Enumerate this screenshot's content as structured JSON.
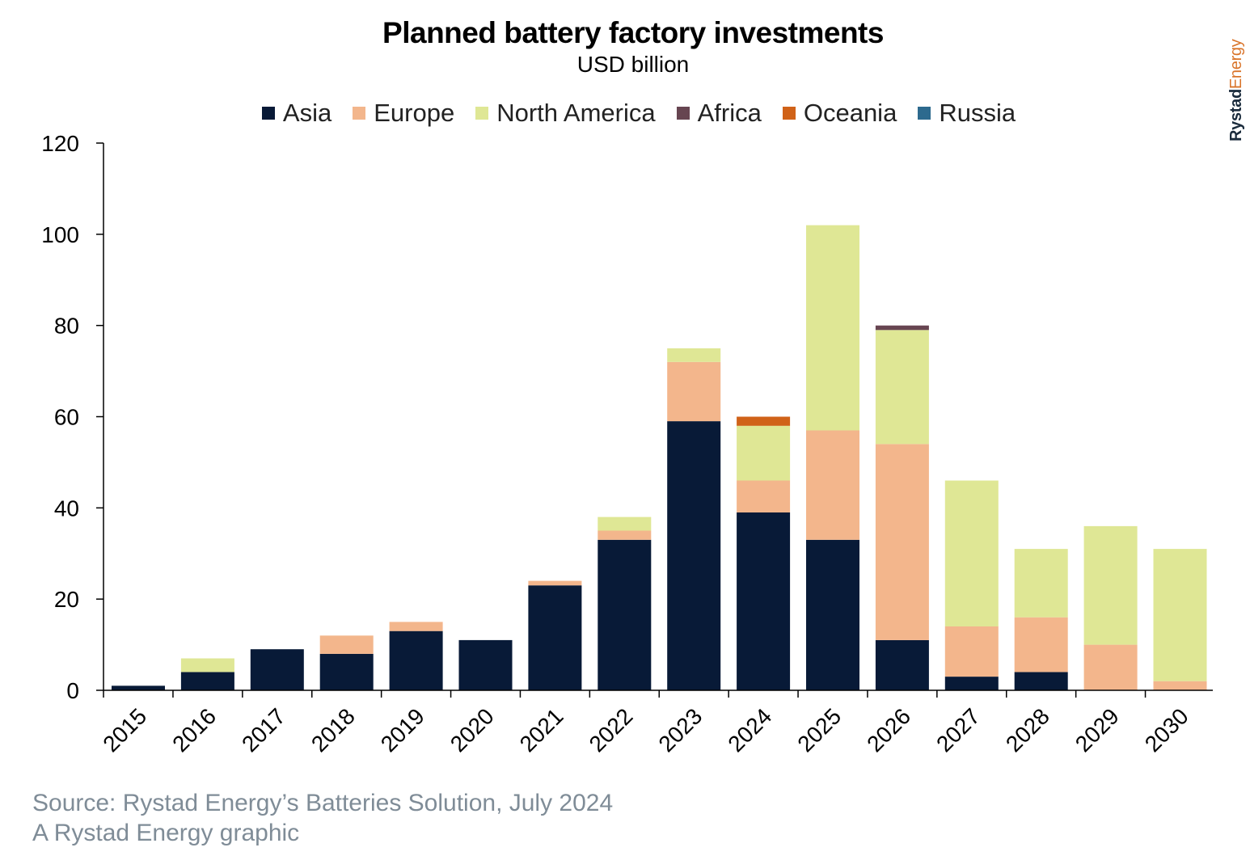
{
  "title": "Planned battery factory investments",
  "subtitle": "USD billion",
  "brand": {
    "part1": "Rystad",
    "part2": "Energy"
  },
  "source": "Source: Rystad Energy’s Batteries Solution, July 2024",
  "credit": "A Rystad Energy graphic",
  "colors": {
    "Asia": "#081a37",
    "Europe": "#f3b68c",
    "North America": "#dfe795",
    "Africa": "#674551",
    "Oceania": "#d06218",
    "Russia": "#2d6a8e"
  },
  "chart_data": {
    "type": "bar",
    "stacked": true,
    "categories": [
      "2015",
      "2016",
      "2017",
      "2018",
      "2019",
      "2020",
      "2021",
      "2022",
      "2023",
      "2024",
      "2025",
      "2026",
      "2027",
      "2028",
      "2029",
      "2030"
    ],
    "series": [
      {
        "name": "Asia",
        "values": [
          1,
          4,
          9,
          8,
          13,
          11,
          23,
          33,
          59,
          39,
          33,
          11,
          3,
          4,
          0,
          0
        ]
      },
      {
        "name": "Europe",
        "values": [
          0,
          0,
          0,
          4,
          2,
          0,
          1,
          2,
          13,
          7,
          24,
          43,
          11,
          12,
          10,
          2
        ]
      },
      {
        "name": "North America",
        "values": [
          0,
          3,
          0,
          0,
          0,
          0,
          0,
          3,
          3,
          12,
          45,
          25,
          32,
          15,
          26,
          29
        ]
      },
      {
        "name": "Africa",
        "values": [
          0,
          0,
          0,
          0,
          0,
          0,
          0,
          0,
          0,
          0,
          0,
          1,
          0,
          0,
          0,
          0
        ]
      },
      {
        "name": "Oceania",
        "values": [
          0,
          0,
          0,
          0,
          0,
          0,
          0,
          0,
          0,
          2,
          0,
          0,
          0,
          0,
          0,
          0
        ]
      },
      {
        "name": "Russia",
        "values": [
          0,
          0,
          0,
          0,
          0,
          0,
          0,
          0,
          0,
          0,
          0,
          0,
          0,
          0,
          0,
          0
        ]
      }
    ],
    "ylim": [
      0,
      120
    ],
    "yticks": [
      0,
      20,
      40,
      60,
      80,
      100,
      120
    ],
    "legend_position": "top"
  }
}
